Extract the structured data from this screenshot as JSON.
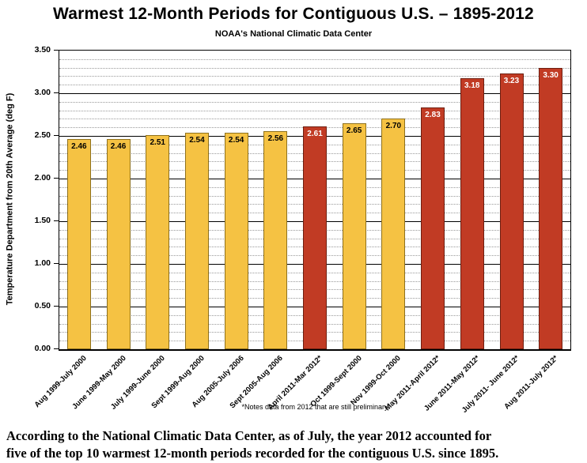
{
  "title": "Warmest 12-Month Periods for Contiguous U.S. – 1895-2012",
  "subtitle": "NOAA's National Climatic Data Center",
  "footnote": "*Notes data from 2012 that are still preliminary",
  "caption": {
    "lines": [
      "According to the National Climatic Data Center, as of July, the year 2012 accounted for",
      "five of the top 10 warmest 12-month periods recorded for the contiguous U.S. since 1895."
    ]
  },
  "chart_data": {
    "type": "bar",
    "title": "Warmest 12-Month Periods for Contiguous U.S. – 1895-2012",
    "subtitle": "NOAA's National Climatic Data Center",
    "ylabel": "Temperature Department from 20th Average (deg F)",
    "xlabel": "",
    "ylim": [
      0,
      3.5
    ],
    "ytick_step": 0.5,
    "yticks": [
      "0.00",
      "0.50",
      "1.00",
      "1.50",
      "2.00",
      "2.50",
      "3.00",
      "3.50"
    ],
    "grid": {
      "major": "solid",
      "minor": "dotted",
      "minor_step": 0.1
    },
    "legend": "none",
    "categories": [
      "Aug 1999-July 2000",
      "June 1999-May 2000",
      "July 1999-June 2000",
      "Sept 1999-Aug 2000",
      "Aug 2005-July 2006",
      "Sept 2005-Aug 2006",
      "April 2011-Mar 2012*",
      "Oct 1999-Sept 2000",
      "Nov 1999-Oct 2000",
      "May 2011-April 2012*",
      "June 2011-May 2012*",
      "July 2011- June 2012*",
      "Aug 2011-July 2012*"
    ],
    "values": [
      2.46,
      2.46,
      2.51,
      2.54,
      2.54,
      2.56,
      2.61,
      2.65,
      2.7,
      2.83,
      3.18,
      3.23,
      3.3
    ],
    "value_labels": [
      "2.46",
      "2.46",
      "2.51",
      "2.54",
      "2.54",
      "2.56",
      "2.61",
      "2.65",
      "2.70",
      "2.83",
      "3.18",
      "3.23",
      "3.30"
    ],
    "bar_groups": [
      "gold",
      "gold",
      "gold",
      "gold",
      "gold",
      "gold",
      "red",
      "gold",
      "gold",
      "red",
      "red",
      "red",
      "red"
    ],
    "colors": {
      "gold": {
        "fill": "#F5C243",
        "border": "#8F711C",
        "label": "#000000"
      },
      "red": {
        "fill": "#C13B24",
        "border": "#6E1E10",
        "label": "#FFFFFF"
      }
    }
  }
}
